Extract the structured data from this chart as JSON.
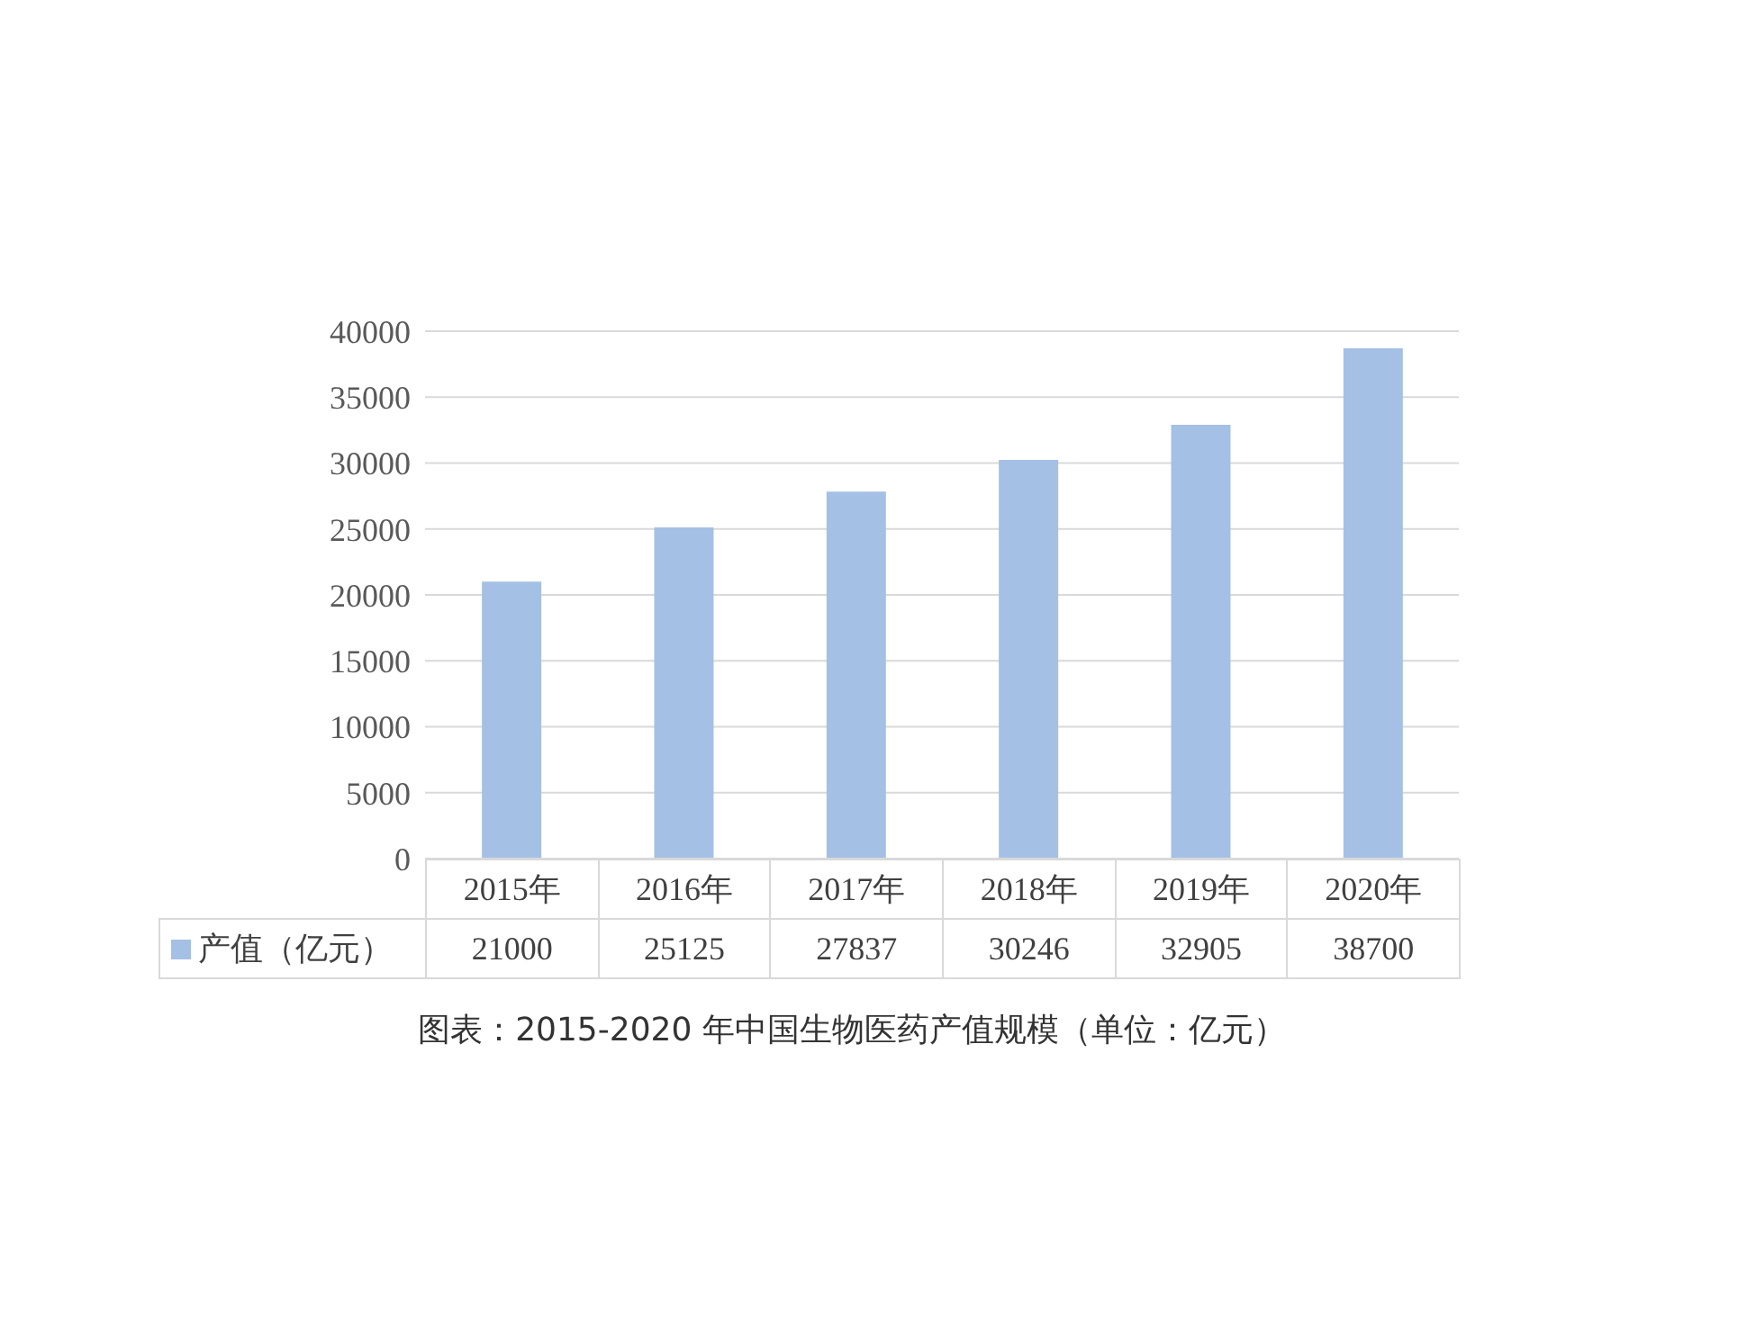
{
  "chart_data": {
    "type": "bar",
    "categories": [
      "2015年",
      "2016年",
      "2017年",
      "2018年",
      "2019年",
      "2020年"
    ],
    "series": [
      {
        "name": "产值（亿元）",
        "color": "#a5c0e5",
        "values": [
          21000,
          25125,
          27837,
          30246,
          32905,
          38700
        ]
      }
    ],
    "ylim": [
      0,
      40000
    ],
    "yticks": [
      0,
      5000,
      10000,
      15000,
      20000,
      25000,
      30000,
      35000,
      40000
    ],
    "grid": "y",
    "legend": "bottom",
    "data_labels": true,
    "annotations": [
      "图表：2015-2020 年中国生物医药产值规模（单位：亿元）"
    ]
  }
}
